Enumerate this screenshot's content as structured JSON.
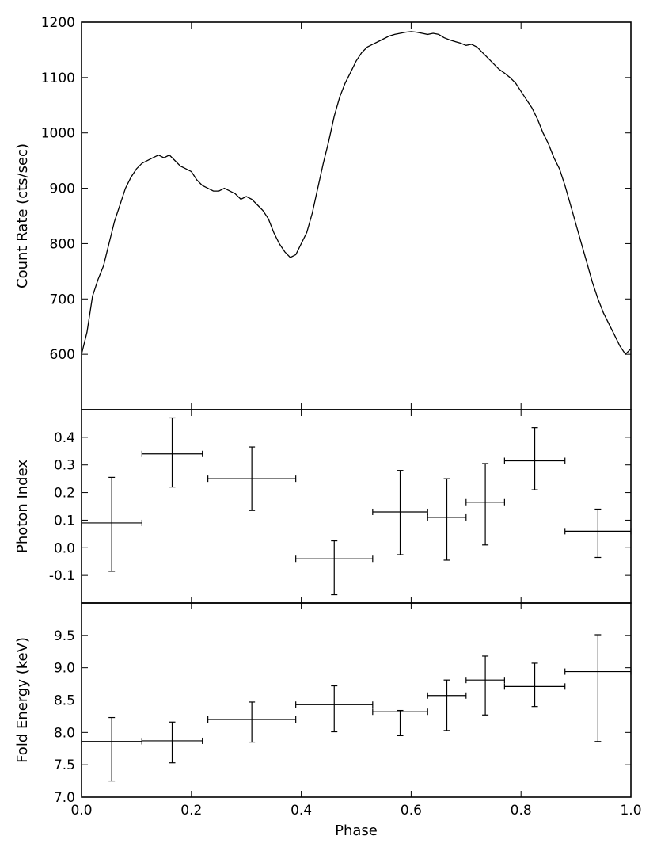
{
  "chart_data": [
    {
      "type": "line",
      "panel": "top",
      "ylabel": "Count Rate (cts/sec)",
      "ylim": [
        500,
        1200
      ],
      "yticks": [
        600,
        700,
        800,
        900,
        1000,
        1100,
        1200
      ],
      "xlim": [
        0.0,
        1.0
      ],
      "x": [
        0.0,
        0.01,
        0.02,
        0.03,
        0.04,
        0.05,
        0.06,
        0.07,
        0.08,
        0.09,
        0.1,
        0.11,
        0.12,
        0.13,
        0.14,
        0.15,
        0.16,
        0.17,
        0.18,
        0.19,
        0.2,
        0.21,
        0.22,
        0.23,
        0.24,
        0.25,
        0.26,
        0.27,
        0.28,
        0.29,
        0.3,
        0.31,
        0.32,
        0.33,
        0.34,
        0.35,
        0.36,
        0.37,
        0.38,
        0.39,
        0.4,
        0.41,
        0.42,
        0.43,
        0.44,
        0.45,
        0.46,
        0.47,
        0.48,
        0.49,
        0.5,
        0.51,
        0.52,
        0.53,
        0.54,
        0.55,
        0.56,
        0.57,
        0.58,
        0.59,
        0.6,
        0.61,
        0.62,
        0.63,
        0.64,
        0.65,
        0.66,
        0.67,
        0.68,
        0.69,
        0.7,
        0.71,
        0.72,
        0.73,
        0.74,
        0.75,
        0.76,
        0.77,
        0.78,
        0.79,
        0.8,
        0.81,
        0.82,
        0.83,
        0.84,
        0.85,
        0.86,
        0.87,
        0.88,
        0.89,
        0.9,
        0.91,
        0.92,
        0.93,
        0.94,
        0.95,
        0.96,
        0.97,
        0.98,
        0.99,
        1.0
      ],
      "y": [
        600,
        640,
        705,
        735,
        760,
        800,
        840,
        870,
        900,
        920,
        935,
        945,
        950,
        955,
        960,
        955,
        960,
        950,
        940,
        935,
        930,
        915,
        905,
        900,
        895,
        895,
        900,
        895,
        890,
        880,
        885,
        880,
        870,
        860,
        845,
        820,
        800,
        785,
        775,
        780,
        800,
        820,
        855,
        900,
        945,
        985,
        1030,
        1065,
        1090,
        1110,
        1130,
        1145,
        1155,
        1160,
        1165,
        1170,
        1175,
        1178,
        1180,
        1182,
        1183,
        1182,
        1180,
        1178,
        1180,
        1178,
        1172,
        1168,
        1165,
        1162,
        1158,
        1160,
        1155,
        1145,
        1135,
        1125,
        1115,
        1108,
        1100,
        1090,
        1075,
        1060,
        1045,
        1025,
        1000,
        980,
        955,
        935,
        905,
        870,
        835,
        800,
        765,
        730,
        700,
        675,
        655,
        635,
        615,
        600,
        610
      ]
    },
    {
      "type": "scatter",
      "panel": "middle",
      "ylabel": "Photon Index",
      "ylim": [
        -0.2,
        0.5
      ],
      "yticks": [
        -0.1,
        0.0,
        0.1,
        0.2,
        0.3,
        0.4
      ],
      "xlim": [
        0.0,
        1.0
      ],
      "points": [
        {
          "x": 0.055,
          "xerr": 0.055,
          "y": 0.09,
          "ylo": -0.085,
          "yhi": 0.255
        },
        {
          "x": 0.165,
          "xerr": 0.055,
          "y": 0.34,
          "ylo": 0.22,
          "yhi": 0.47
        },
        {
          "x": 0.31,
          "xerr": 0.08,
          "y": 0.25,
          "ylo": 0.135,
          "yhi": 0.365
        },
        {
          "x": 0.46,
          "xerr": 0.07,
          "y": -0.04,
          "ylo": -0.17,
          "yhi": 0.025
        },
        {
          "x": 0.58,
          "xerr": 0.05,
          "y": 0.13,
          "ylo": -0.025,
          "yhi": 0.28
        },
        {
          "x": 0.665,
          "xerr": 0.035,
          "y": 0.11,
          "ylo": -0.045,
          "yhi": 0.25
        },
        {
          "x": 0.735,
          "xerr": 0.035,
          "y": 0.165,
          "ylo": 0.01,
          "yhi": 0.305
        },
        {
          "x": 0.825,
          "xerr": 0.055,
          "y": 0.315,
          "ylo": 0.21,
          "yhi": 0.435
        },
        {
          "x": 0.94,
          "xerr": 0.06,
          "y": 0.06,
          "ylo": -0.035,
          "yhi": 0.14
        }
      ]
    },
    {
      "type": "scatter",
      "panel": "bottom",
      "ylabel": "Fold Energy (keV)",
      "xlabel": "Phase",
      "ylim": [
        7.0,
        10.0
      ],
      "yticks": [
        7.0,
        7.5,
        8.0,
        8.5,
        9.0,
        9.5
      ],
      "xlim": [
        0.0,
        1.0
      ],
      "xticks": [
        0.0,
        0.2,
        0.4,
        0.6,
        0.8,
        1.0
      ],
      "points": [
        {
          "x": 0.055,
          "xerr": 0.055,
          "y": 7.86,
          "ylo": 7.25,
          "yhi": 8.23
        },
        {
          "x": 0.165,
          "xerr": 0.055,
          "y": 7.87,
          "ylo": 7.53,
          "yhi": 8.16
        },
        {
          "x": 0.31,
          "xerr": 0.08,
          "y": 8.2,
          "ylo": 7.85,
          "yhi": 8.47
        },
        {
          "x": 0.46,
          "xerr": 0.07,
          "y": 8.43,
          "ylo": 8.01,
          "yhi": 8.72
        },
        {
          "x": 0.58,
          "xerr": 0.05,
          "y": 8.32,
          "ylo": 7.95,
          "yhi": 8.34
        },
        {
          "x": 0.665,
          "xerr": 0.035,
          "y": 8.57,
          "ylo": 8.03,
          "yhi": 8.81
        },
        {
          "x": 0.735,
          "xerr": 0.035,
          "y": 8.81,
          "ylo": 8.27,
          "yhi": 9.18
        },
        {
          "x": 0.825,
          "xerr": 0.055,
          "y": 8.71,
          "ylo": 8.4,
          "yhi": 9.07
        },
        {
          "x": 0.94,
          "xerr": 0.06,
          "y": 8.94,
          "ylo": 7.86,
          "yhi": 9.51
        }
      ]
    }
  ]
}
